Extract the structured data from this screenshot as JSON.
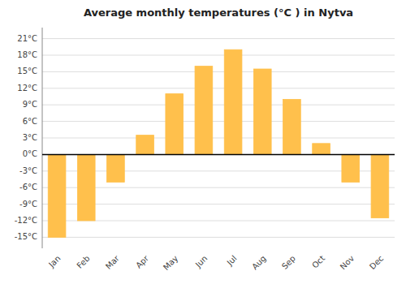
{
  "chart_data": {
    "type": "bar",
    "title": "Average monthly temperatures (°C ) in Nytva",
    "categories": [
      "Jan",
      "Feb",
      "Mar",
      "Apr",
      "May",
      "Jun",
      "Jul",
      "Aug",
      "Sep",
      "Oct",
      "Nov",
      "Dec"
    ],
    "values": [
      -15,
      -12,
      -5,
      3.5,
      11,
      16,
      19,
      15.5,
      10,
      2,
      -5,
      -11.5
    ],
    "color": "#FFC04C",
    "ylim": [
      -17,
      23
    ],
    "yticks": [
      {
        "value": -15,
        "label": "-15°C"
      },
      {
        "value": -12,
        "label": "-12°C"
      },
      {
        "value": -9,
        "label": "-9°C"
      },
      {
        "value": -6,
        "label": "-6°C"
      },
      {
        "value": -3,
        "label": "-3°C"
      },
      {
        "value": 0,
        "label": "0°C"
      },
      {
        "value": 3,
        "label": "3°C"
      },
      {
        "value": 6,
        "label": "6°C"
      },
      {
        "value": 9,
        "label": "9°C"
      },
      {
        "value": 12,
        "label": "12°C"
      },
      {
        "value": 15,
        "label": "15°C"
      },
      {
        "value": 18,
        "label": "18°C"
      },
      {
        "value": 21,
        "label": "21°C"
      }
    ],
    "grid": true
  }
}
